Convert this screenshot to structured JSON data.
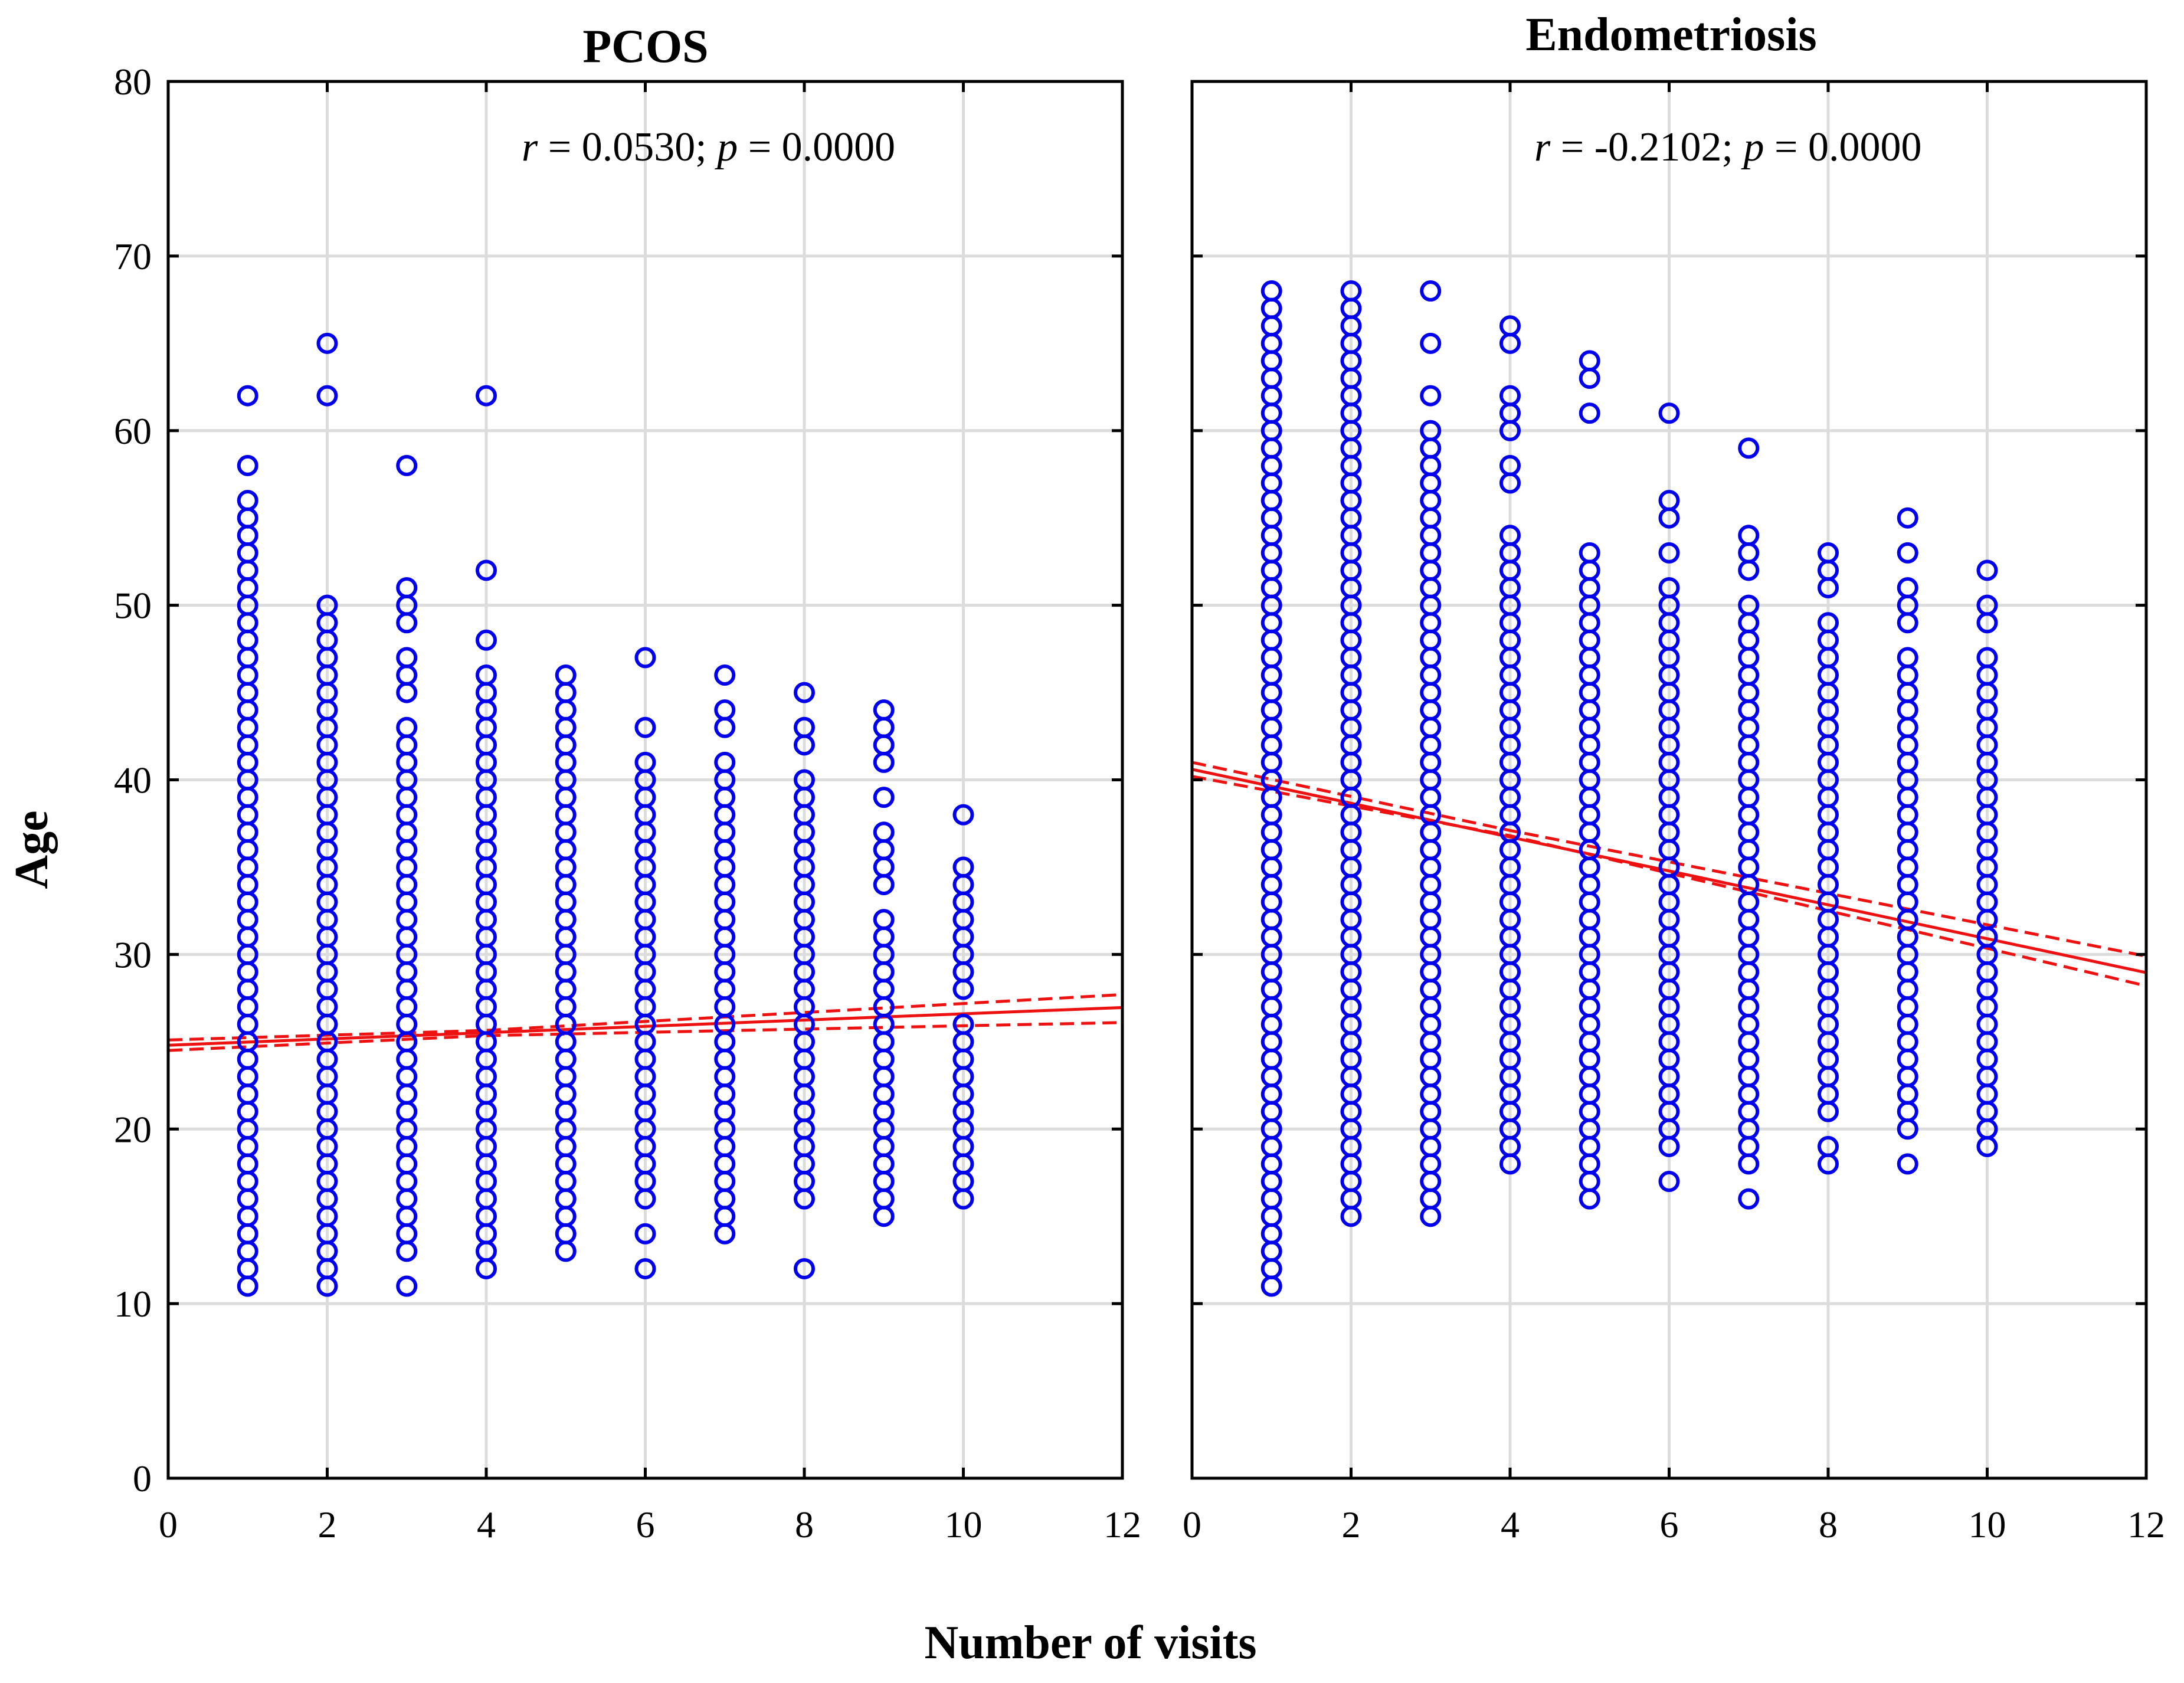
{
  "chart_data": {
    "type": "scatter",
    "xlabel": "Number of visits",
    "ylabel": "Age",
    "xlim": [
      0,
      12
    ],
    "ylim": [
      0,
      80
    ],
    "xticks": [
      0,
      2,
      4,
      6,
      8,
      10,
      12
    ],
    "yticks": [
      0,
      10,
      20,
      30,
      40,
      50,
      60,
      70,
      80
    ],
    "grid": true,
    "panels": [
      {
        "title": "PCOS",
        "annotation": {
          "r_label": "r",
          "r_text": " = 0.0530; ",
          "p_label": "p",
          "p_text": " = 0.0000"
        },
        "fit": {
          "intercept": 24.8,
          "slope": 0.18
        },
        "ci_band": [
          [
            0,
            24.5,
            25.1
          ],
          [
            4,
            25.35,
            25.65
          ],
          [
            12,
            26.1,
            27.7
          ]
        ],
        "points": [
          {
            "x": 1,
            "ages": [
              11,
              12,
              13,
              14,
              15,
              16,
              17,
              18,
              19,
              20,
              21,
              22,
              23,
              24,
              25,
              26,
              27,
              28,
              29,
              30,
              31,
              32,
              33,
              34,
              35,
              36,
              37,
              38,
              39,
              40,
              41,
              42,
              43,
              44,
              45,
              46,
              47,
              48,
              49,
              50,
              51,
              52,
              53,
              54,
              55,
              56,
              58,
              62
            ]
          },
          {
            "x": 2,
            "ages": [
              11,
              12,
              13,
              14,
              15,
              16,
              17,
              18,
              19,
              20,
              21,
              22,
              23,
              24,
              25,
              26,
              27,
              28,
              29,
              30,
              31,
              32,
              33,
              34,
              35,
              36,
              37,
              38,
              39,
              40,
              41,
              42,
              43,
              44,
              45,
              46,
              47,
              48,
              49,
              50,
              62,
              65
            ]
          },
          {
            "x": 3,
            "ages": [
              11,
              13,
              14,
              15,
              16,
              17,
              18,
              19,
              20,
              21,
              22,
              23,
              24,
              25,
              26,
              27,
              28,
              29,
              30,
              31,
              32,
              33,
              34,
              35,
              36,
              37,
              38,
              39,
              40,
              41,
              42,
              43,
              45,
              46,
              47,
              49,
              50,
              51,
              58
            ]
          },
          {
            "x": 4,
            "ages": [
              12,
              13,
              14,
              15,
              16,
              17,
              18,
              19,
              20,
              21,
              22,
              23,
              24,
              25,
              26,
              27,
              28,
              29,
              30,
              31,
              32,
              33,
              34,
              35,
              36,
              37,
              38,
              39,
              40,
              41,
              42,
              43,
              44,
              45,
              46,
              48,
              52,
              62
            ]
          },
          {
            "x": 5,
            "ages": [
              13,
              14,
              15,
              16,
              17,
              18,
              19,
              20,
              21,
              22,
              23,
              24,
              25,
              26,
              27,
              28,
              29,
              30,
              31,
              32,
              33,
              34,
              35,
              36,
              37,
              38,
              39,
              40,
              41,
              42,
              43,
              44,
              45,
              46
            ]
          },
          {
            "x": 6,
            "ages": [
              12,
              14,
              16,
              17,
              18,
              19,
              20,
              21,
              22,
              23,
              24,
              25,
              26,
              27,
              28,
              29,
              30,
              31,
              32,
              33,
              34,
              35,
              36,
              37,
              38,
              39,
              40,
              41,
              43,
              47
            ]
          },
          {
            "x": 7,
            "ages": [
              14,
              15,
              16,
              17,
              18,
              19,
              20,
              21,
              22,
              23,
              24,
              25,
              26,
              27,
              28,
              29,
              30,
              31,
              32,
              33,
              34,
              35,
              36,
              37,
              38,
              39,
              40,
              41,
              43,
              44,
              46
            ]
          },
          {
            "x": 8,
            "ages": [
              12,
              16,
              17,
              18,
              19,
              20,
              21,
              22,
              23,
              24,
              25,
              26,
              27,
              28,
              29,
              30,
              31,
              32,
              33,
              34,
              35,
              36,
              37,
              38,
              39,
              40,
              42,
              43,
              45
            ]
          },
          {
            "x": 9,
            "ages": [
              15,
              16,
              17,
              18,
              19,
              20,
              21,
              22,
              23,
              24,
              25,
              26,
              27,
              28,
              29,
              30,
              31,
              32,
              34,
              35,
              36,
              37,
              39,
              41,
              42,
              43,
              44
            ]
          },
          {
            "x": 10,
            "ages": [
              16,
              17,
              18,
              19,
              20,
              21,
              22,
              23,
              24,
              25,
              26,
              28,
              29,
              30,
              31,
              32,
              33,
              34,
              35,
              38
            ]
          }
        ]
      },
      {
        "title": "Endometriosis",
        "annotation": {
          "r_label": "r",
          "r_text": " = -0.2102; ",
          "p_label": "p",
          "p_text": " = 0.0000"
        },
        "fit": {
          "intercept": 40.6,
          "slope": -0.97
        },
        "ci_band": [
          [
            0,
            40.2,
            41.0
          ],
          [
            4,
            36.8,
            37.1
          ],
          [
            12,
            28.2,
            29.9
          ]
        ],
        "points": [
          {
            "x": 1,
            "ages": [
              11,
              12,
              13,
              14,
              15,
              16,
              17,
              18,
              19,
              20,
              21,
              22,
              23,
              24,
              25,
              26,
              27,
              28,
              29,
              30,
              31,
              32,
              33,
              34,
              35,
              36,
              37,
              38,
              39,
              40,
              41,
              42,
              43,
              44,
              45,
              46,
              47,
              48,
              49,
              50,
              51,
              52,
              53,
              54,
              55,
              56,
              57,
              58,
              59,
              60,
              61,
              62,
              63,
              64,
              65,
              66,
              67,
              68
            ]
          },
          {
            "x": 2,
            "ages": [
              15,
              16,
              17,
              18,
              19,
              20,
              21,
              22,
              23,
              24,
              25,
              26,
              27,
              28,
              29,
              30,
              31,
              32,
              33,
              34,
              35,
              36,
              37,
              38,
              39,
              40,
              41,
              42,
              43,
              44,
              45,
              46,
              47,
              48,
              49,
              50,
              51,
              52,
              53,
              54,
              55,
              56,
              57,
              58,
              59,
              60,
              61,
              62,
              63,
              64,
              65,
              66,
              67,
              68
            ]
          },
          {
            "x": 3,
            "ages": [
              15,
              16,
              17,
              18,
              19,
              20,
              21,
              22,
              23,
              24,
              25,
              26,
              27,
              28,
              29,
              30,
              31,
              32,
              33,
              34,
              35,
              36,
              37,
              38,
              39,
              40,
              41,
              42,
              43,
              44,
              45,
              46,
              47,
              48,
              49,
              50,
              51,
              52,
              53,
              54,
              55,
              56,
              57,
              58,
              59,
              60,
              62,
              65,
              68
            ]
          },
          {
            "x": 4,
            "ages": [
              18,
              19,
              20,
              21,
              22,
              23,
              24,
              25,
              26,
              27,
              28,
              29,
              30,
              31,
              32,
              33,
              34,
              35,
              36,
              37,
              38,
              39,
              40,
              41,
              42,
              43,
              44,
              45,
              46,
              47,
              48,
              49,
              50,
              51,
              52,
              53,
              54,
              57,
              58,
              60,
              61,
              62,
              65,
              66
            ]
          },
          {
            "x": 5,
            "ages": [
              16,
              17,
              18,
              19,
              20,
              21,
              22,
              23,
              24,
              25,
              26,
              27,
              28,
              29,
              30,
              31,
              32,
              33,
              34,
              35,
              36,
              37,
              38,
              39,
              40,
              41,
              42,
              43,
              44,
              45,
              46,
              47,
              48,
              49,
              50,
              51,
              52,
              53,
              61,
              63,
              64
            ]
          },
          {
            "x": 6,
            "ages": [
              17,
              19,
              20,
              21,
              22,
              23,
              24,
              25,
              26,
              27,
              28,
              29,
              30,
              31,
              32,
              33,
              34,
              35,
              36,
              37,
              38,
              39,
              40,
              41,
              42,
              43,
              44,
              45,
              46,
              47,
              48,
              49,
              50,
              51,
              53,
              55,
              56,
              61
            ]
          },
          {
            "x": 7,
            "ages": [
              16,
              18,
              19,
              20,
              21,
              22,
              23,
              24,
              25,
              26,
              27,
              28,
              29,
              30,
              31,
              32,
              33,
              34,
              35,
              36,
              37,
              38,
              39,
              40,
              41,
              42,
              43,
              44,
              45,
              46,
              47,
              48,
              49,
              50,
              52,
              53,
              54,
              59
            ]
          },
          {
            "x": 8,
            "ages": [
              18,
              19,
              21,
              22,
              23,
              24,
              25,
              26,
              27,
              28,
              29,
              30,
              31,
              32,
              33,
              34,
              35,
              36,
              37,
              38,
              39,
              40,
              41,
              42,
              43,
              44,
              45,
              46,
              47,
              48,
              49,
              51,
              52,
              53
            ]
          },
          {
            "x": 9,
            "ages": [
              18,
              20,
              21,
              22,
              23,
              24,
              25,
              26,
              27,
              28,
              29,
              30,
              31,
              32,
              33,
              34,
              35,
              36,
              37,
              38,
              39,
              40,
              41,
              42,
              43,
              44,
              45,
              46,
              47,
              49,
              50,
              51,
              53,
              55
            ]
          },
          {
            "x": 10,
            "ages": [
              19,
              20,
              21,
              22,
              23,
              24,
              25,
              26,
              27,
              28,
              29,
              30,
              31,
              32,
              33,
              34,
              35,
              36,
              37,
              38,
              39,
              40,
              41,
              42,
              43,
              44,
              45,
              46,
              47,
              49,
              50,
              52
            ]
          }
        ]
      }
    ]
  }
}
